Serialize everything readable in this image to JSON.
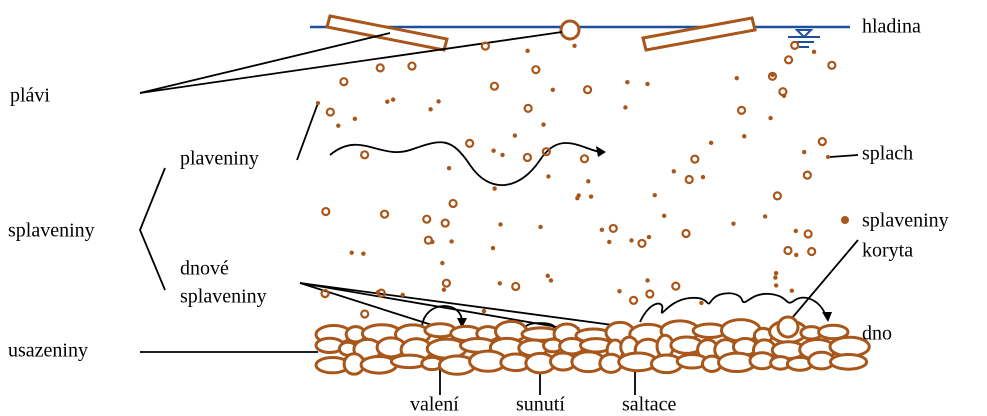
{
  "labels": {
    "hladina": "hladina",
    "plavi": "plávi",
    "plaveniny": "plaveniny",
    "splach": "splach",
    "splaveniny": "splaveniny",
    "splaveniny_koryta": [
      "splaveniny",
      "koryta"
    ],
    "dnove_splaveniny": [
      "dnové",
      "splaveniny"
    ],
    "usazeniny": "usazeniny",
    "dno": "dno",
    "valeni": "valení",
    "sunuti": "sunutí",
    "saltace": "saltace"
  }
}
